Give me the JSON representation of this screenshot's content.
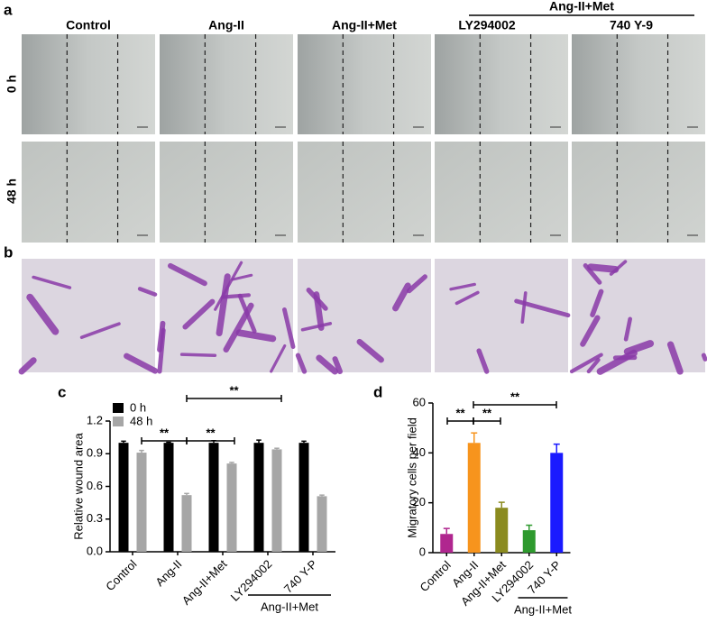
{
  "figure": {
    "panel_labels": [
      "a",
      "b",
      "c",
      "d"
    ],
    "columns": [
      "Control",
      "Ang-II",
      "Ang-II+Met",
      "LY294002",
      "740 Y-9"
    ],
    "column_group": "Ang-II+Met",
    "rows": [
      "0 h",
      "48 h"
    ]
  },
  "chart_data": [
    {
      "type": "bar",
      "y_label": "Relative wound area",
      "categories": [
        "Control",
        "Ang-II",
        "Ang-II+Met",
        "LY294002",
        "740 Y-P"
      ],
      "series": [
        {
          "name": "0 h",
          "color": "#000000",
          "values": [
            1.0,
            1.0,
            1.0,
            1.0,
            1.0
          ],
          "errors": [
            0.015,
            0.005,
            0.02,
            0.025,
            0.015
          ]
        },
        {
          "name": "48 h",
          "color": "#a6a6a6",
          "values": [
            0.91,
            0.52,
            0.81,
            0.94,
            0.51
          ],
          "errors": [
            0.02,
            0.015,
            0.01,
            0.01,
            0.01
          ]
        }
      ],
      "ylim": [
        0,
        1.2
      ],
      "yticks": [
        {
          "value": 0,
          "label": "0.0"
        },
        0.3,
        0.6,
        0.9,
        1.2
      ],
      "group_label": "Ang-II+Met",
      "annotations": [
        "**",
        "**",
        "**"
      ],
      "legend": "upper left"
    },
    {
      "type": "bar",
      "y_label": "Migratory cells per field",
      "categories": [
        "Control",
        "Ang-II",
        "Ang-II+Met",
        "LY294002",
        "740 Y-P"
      ],
      "values": [
        7.5,
        44,
        18,
        9,
        40
      ],
      "errors": [
        2.2,
        4,
        2.2,
        2,
        3.5
      ],
      "colors": [
        "#b0268f",
        "#f7941d",
        "#8b8b1f",
        "#2e9a2e",
        "#1a1aff"
      ],
      "ylim": [
        0,
        60
      ],
      "yticks": [
        0,
        20,
        40,
        60
      ],
      "group_label": "Ang-II+Met",
      "annotations": [
        "**",
        "**",
        "**"
      ]
    }
  ]
}
